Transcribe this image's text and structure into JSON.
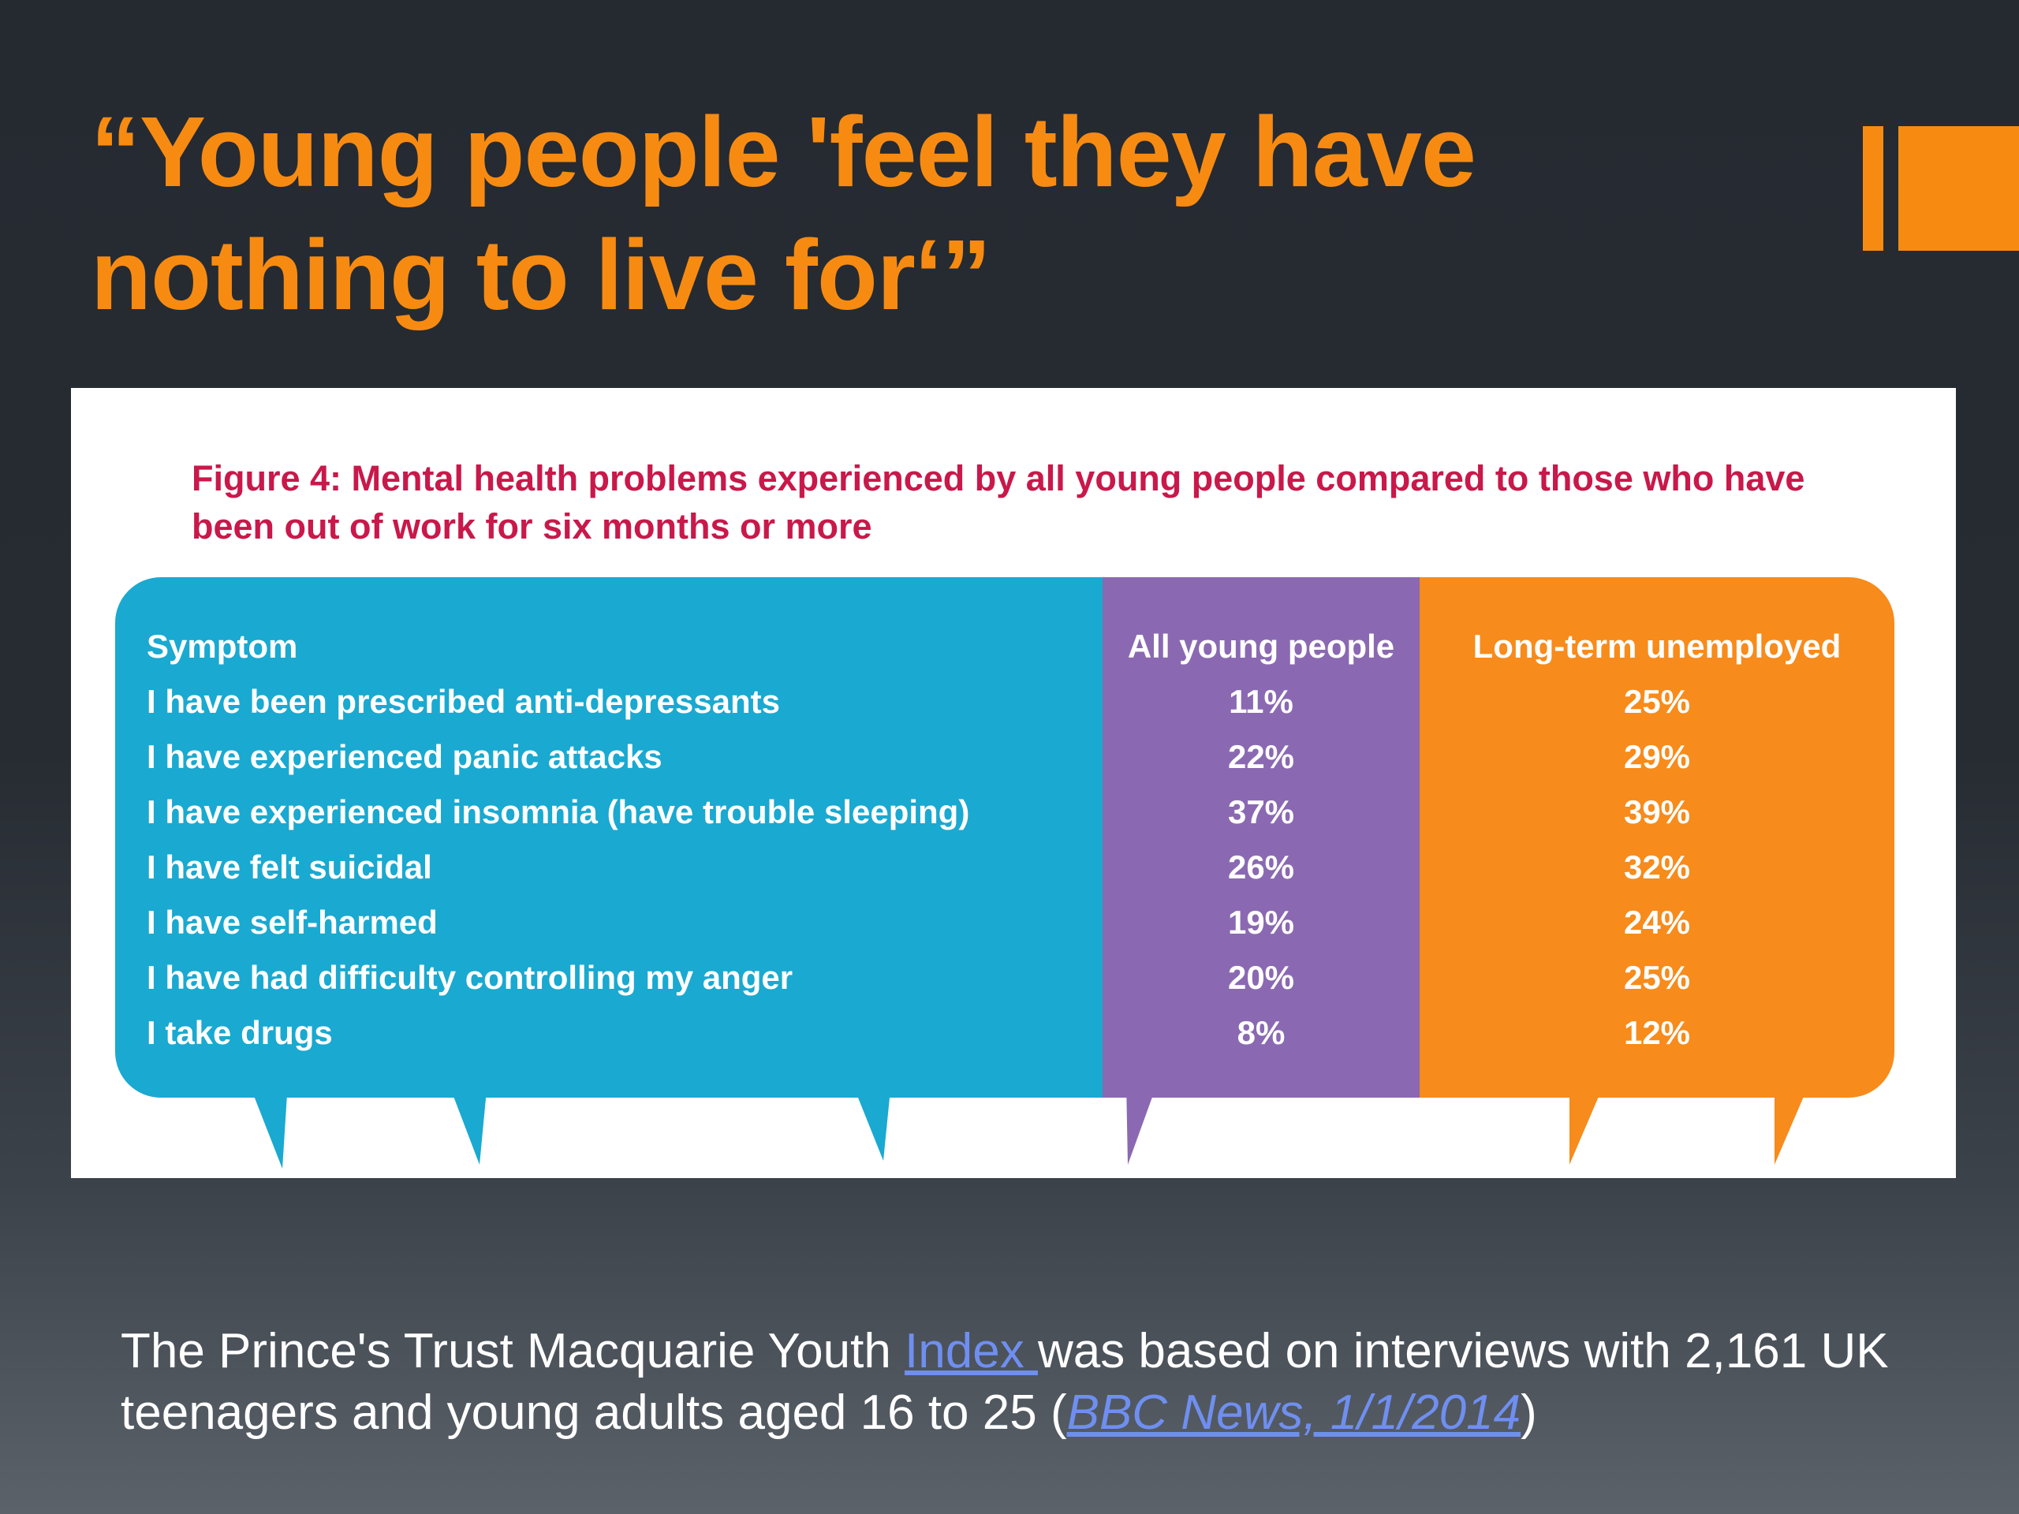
{
  "slide": {
    "title": "“Young people 'feel they have nothing to live for‘”"
  },
  "figure": {
    "caption": "Figure 4: Mental health problems experienced by all young people compared to those who have been out of work for six months or more",
    "headers": {
      "symptom": "Symptom",
      "all": "All young people",
      "long_term": "Long-term unemployed"
    },
    "rows": [
      {
        "symptom": "I have been prescribed anti-depressants",
        "all": "11%",
        "long_term": "25%"
      },
      {
        "symptom": "I have experienced panic attacks",
        "all": "22%",
        "long_term": "29%"
      },
      {
        "symptom": "I have experienced insomnia (have trouble sleeping)",
        "all": "37%",
        "long_term": "39%"
      },
      {
        "symptom": "I have felt suicidal",
        "all": "26%",
        "long_term": "32%"
      },
      {
        "symptom": "I have self-harmed",
        "all": "19%",
        "long_term": "24%"
      },
      {
        "symptom": "I have had difficulty controlling my anger",
        "all": "20%",
        "long_term": "25%"
      },
      {
        "symptom": "I take drugs",
        "all": "8%",
        "long_term": "12%"
      }
    ],
    "colors": {
      "symptom_panel": "#1aa9d0",
      "all_panel": "#8a69b2",
      "long_term_panel": "#f78b1b",
      "caption": "#c9184a"
    }
  },
  "footer": {
    "text_before_link": "The Prince's Trust Macquarie Youth ",
    "index_link": "Index ",
    "text_middle": "was based on interviews with 2,161 UK teenagers and young adults aged 16 to 25 (",
    "bbc_link": "BBC News, 1/1/2014",
    "text_end": ")"
  },
  "theme": {
    "accent": "#f78b12",
    "link": "#6f8ff0"
  }
}
